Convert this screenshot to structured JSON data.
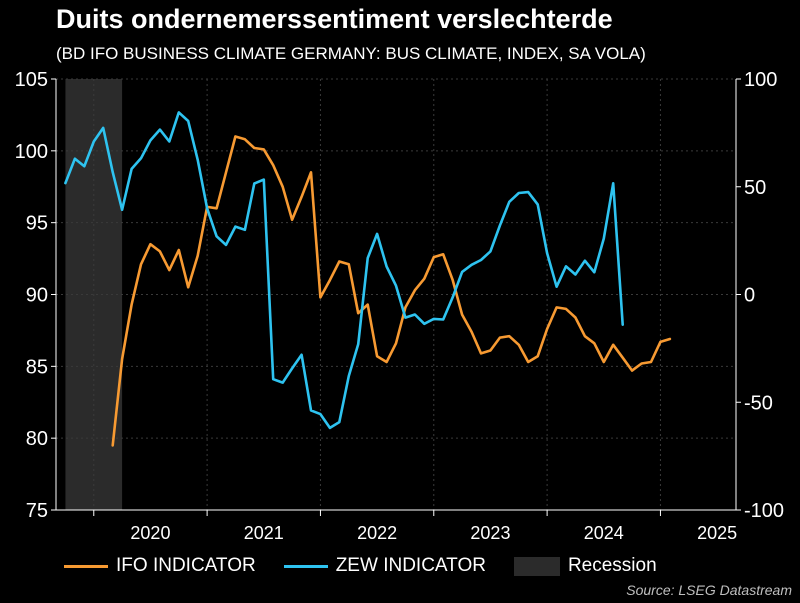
{
  "title": "Duits ondernemerssentiment verslechterde",
  "subtitle": "(BD IFO BUSINESS CLIMATE GERMANY: BUS CLIMATE, INDEX, SA VOLA)",
  "source": "Source: LSEG Datastream",
  "colors": {
    "ifo": "#f79a32",
    "zew": "#2ec3f0",
    "recession": "#2b2b2b",
    "grid": "#3a3a3a",
    "axis": "#ffffff"
  },
  "legend": [
    {
      "label": "IFO INDICATOR",
      "kind": "line",
      "color": "#f79a32"
    },
    {
      "label": "ZEW INDICATOR",
      "kind": "line",
      "color": "#2ec3f0"
    },
    {
      "label": "Recession",
      "kind": "box",
      "color": "#2b2b2b"
    }
  ],
  "chart_data": {
    "type": "line",
    "grid": true,
    "legend_position": "bottom",
    "x_range": [
      "2019-09",
      "2025-09"
    ],
    "x_ticks": [
      "2020",
      "2021",
      "2022",
      "2023",
      "2024",
      "2025"
    ],
    "left_axis": {
      "ylim": [
        75,
        105
      ],
      "ticks": [
        "75",
        "80",
        "85",
        "90",
        "95",
        "100",
        "105"
      ]
    },
    "right_axis": {
      "ylim": [
        -100,
        100
      ],
      "ticks": [
        "-100",
        "-50",
        "0",
        "50",
        "100"
      ]
    },
    "recession": [
      {
        "start": "2019-10",
        "end": "2020-04"
      }
    ],
    "series": [
      {
        "name": "IFO INDICATOR",
        "axis": "left",
        "points": [
          [
            "2020-03",
            79.5
          ],
          [
            "2020-04",
            85.5
          ],
          [
            "2020-05",
            89.3
          ],
          [
            "2020-06",
            92.1
          ],
          [
            "2020-07",
            93.5
          ],
          [
            "2020-08",
            93.0
          ],
          [
            "2020-09",
            91.7
          ],
          [
            "2020-10",
            93.1
          ],
          [
            "2020-11",
            90.5
          ],
          [
            "2020-12",
            92.7
          ],
          [
            "2021-01",
            96.1
          ],
          [
            "2021-02",
            96.0
          ],
          [
            "2021-03",
            98.5
          ],
          [
            "2021-04",
            101.0
          ],
          [
            "2021-05",
            100.8
          ],
          [
            "2021-06",
            100.2
          ],
          [
            "2021-07",
            100.1
          ],
          [
            "2021-08",
            99.0
          ],
          [
            "2021-09",
            97.5
          ],
          [
            "2021-10",
            95.2
          ],
          [
            "2021-11",
            96.8
          ],
          [
            "2021-12",
            98.5
          ],
          [
            "2022-01",
            89.8
          ],
          [
            "2022-02",
            91.0
          ],
          [
            "2022-03",
            92.3
          ],
          [
            "2022-04",
            92.1
          ],
          [
            "2022-05",
            88.7
          ],
          [
            "2022-06",
            89.3
          ],
          [
            "2022-07",
            85.7
          ],
          [
            "2022-08",
            85.3
          ],
          [
            "2022-09",
            86.6
          ],
          [
            "2022-10",
            89.1
          ],
          [
            "2022-11",
            90.3
          ],
          [
            "2022-12",
            91.1
          ],
          [
            "2023-01",
            92.6
          ],
          [
            "2023-02",
            92.8
          ],
          [
            "2023-03",
            91.0
          ],
          [
            "2023-04",
            88.6
          ],
          [
            "2023-05",
            87.4
          ],
          [
            "2023-06",
            85.9
          ],
          [
            "2023-07",
            86.1
          ],
          [
            "2023-08",
            87.0
          ],
          [
            "2023-09",
            87.1
          ],
          [
            "2023-10",
            86.5
          ],
          [
            "2023-11",
            85.3
          ],
          [
            "2023-12",
            85.7
          ],
          [
            "2024-01",
            87.6
          ],
          [
            "2024-02",
            89.1
          ],
          [
            "2024-03",
            89.0
          ],
          [
            "2024-04",
            88.4
          ],
          [
            "2024-05",
            87.1
          ],
          [
            "2024-06",
            86.6
          ],
          [
            "2024-07",
            85.3
          ],
          [
            "2024-08",
            86.5
          ],
          [
            "2024-09",
            85.6
          ],
          [
            "2024-10",
            84.7
          ],
          [
            "2024-11",
            85.2
          ],
          [
            "2024-12",
            85.3
          ],
          [
            "2025-01",
            86.7
          ],
          [
            "2025-02",
            86.9
          ]
        ]
      },
      {
        "name": "ZEW INDICATOR",
        "axis": "right",
        "points": [
          [
            "2019-10",
            51.7
          ],
          [
            "2019-11",
            63.0
          ],
          [
            "2019-12",
            59.5
          ],
          [
            "2020-01",
            71.0
          ],
          [
            "2020-02",
            77.3
          ],
          [
            "2020-03",
            56.8
          ],
          [
            "2020-04",
            39.3
          ],
          [
            "2020-05",
            58.3
          ],
          [
            "2020-06",
            63.2
          ],
          [
            "2020-07",
            71.5
          ],
          [
            "2020-08",
            76.5
          ],
          [
            "2020-09",
            71.0
          ],
          [
            "2020-10",
            84.5
          ],
          [
            "2020-11",
            80.5
          ],
          [
            "2020-12",
            62.5
          ],
          [
            "2021-01",
            40.0
          ],
          [
            "2021-02",
            27.0
          ],
          [
            "2021-03",
            23.0
          ],
          [
            "2021-04",
            31.5
          ],
          [
            "2021-05",
            30.0
          ],
          [
            "2021-06",
            51.5
          ],
          [
            "2021-07",
            53.3
          ],
          [
            "2021-08",
            -39.3
          ],
          [
            "2021-09",
            -40.9
          ],
          [
            "2021-10",
            -34.3
          ],
          [
            "2021-11",
            -28.0
          ],
          [
            "2021-12",
            -53.8
          ],
          [
            "2022-01",
            -55.5
          ],
          [
            "2022-02",
            -61.9
          ],
          [
            "2022-03",
            -59.2
          ],
          [
            "2022-04",
            -37.8
          ],
          [
            "2022-05",
            -23.1
          ],
          [
            "2022-06",
            16.9
          ],
          [
            "2022-07",
            28.1
          ],
          [
            "2022-08",
            13.0
          ],
          [
            "2022-09",
            4.1
          ],
          [
            "2022-10",
            -10.7
          ],
          [
            "2022-11",
            -9.3
          ],
          [
            "2022-12",
            -13.6
          ],
          [
            "2023-01",
            -11.3
          ],
          [
            "2023-02",
            -11.6
          ],
          [
            "2023-03",
            -1.3
          ],
          [
            "2023-04",
            10.5
          ],
          [
            "2023-05",
            13.8
          ],
          [
            "2023-06",
            16.0
          ],
          [
            "2023-07",
            20.0
          ],
          [
            "2023-08",
            32.0
          ],
          [
            "2023-09",
            43.0
          ],
          [
            "2023-10",
            47.1
          ],
          [
            "2023-11",
            47.5
          ],
          [
            "2023-12",
            41.8
          ],
          [
            "2024-01",
            19.2
          ],
          [
            "2024-02",
            3.6
          ],
          [
            "2024-03",
            13.1
          ],
          [
            "2024-04",
            9.3
          ],
          [
            "2024-05",
            15.7
          ],
          [
            "2024-06",
            10.3
          ],
          [
            "2024-07",
            26.0
          ],
          [
            "2024-08",
            51.6
          ],
          [
            "2024-09",
            -14.0
          ]
        ]
      }
    ]
  }
}
